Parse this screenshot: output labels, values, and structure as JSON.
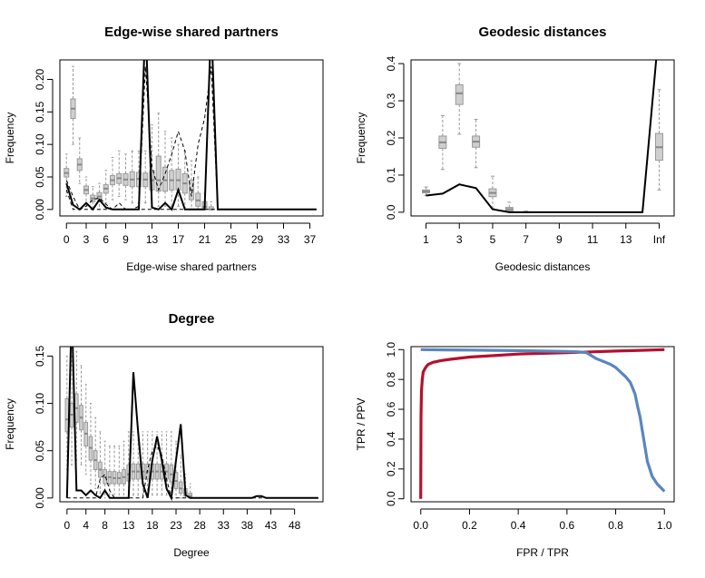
{
  "chart_data": [
    {
      "type": "boxplot-line",
      "title": "Edge-wise shared partners",
      "xlabel": "Edge-wise shared partners",
      "ylabel": "Frequency",
      "xlim": [
        -1,
        39
      ],
      "ylim": [
        -0.01,
        0.23
      ],
      "xticks": [
        0,
        3,
        6,
        9,
        13,
        17,
        21,
        25,
        29,
        33,
        37
      ],
      "yticks": [
        0.0,
        0.05,
        0.1,
        0.15,
        0.2
      ],
      "ytick_labels": [
        "0.00",
        "0.05",
        "0.10",
        "0.15",
        "0.20"
      ],
      "boxes": [
        {
          "x": 0,
          "wl": 0.02,
          "q1": 0.05,
          "med": 0.056,
          "q3": 0.063,
          "wh": 0.085
        },
        {
          "x": 1,
          "wl": 0.1,
          "q1": 0.14,
          "med": 0.155,
          "q3": 0.17,
          "wh": 0.22
        },
        {
          "x": 2,
          "wl": 0.04,
          "q1": 0.06,
          "med": 0.069,
          "q3": 0.078,
          "wh": 0.11
        },
        {
          "x": 3,
          "wl": 0.005,
          "q1": 0.024,
          "med": 0.03,
          "q3": 0.036,
          "wh": 0.05
        },
        {
          "x": 4,
          "wl": 0.0,
          "q1": 0.012,
          "med": 0.017,
          "q3": 0.022,
          "wh": 0.035
        },
        {
          "x": 5,
          "wl": 0.0,
          "q1": 0.015,
          "med": 0.02,
          "q3": 0.026,
          "wh": 0.04
        },
        {
          "x": 6,
          "wl": 0.01,
          "q1": 0.025,
          "med": 0.032,
          "q3": 0.038,
          "wh": 0.06
        },
        {
          "x": 7,
          "wl": 0.015,
          "q1": 0.038,
          "med": 0.045,
          "q3": 0.052,
          "wh": 0.08
        },
        {
          "x": 8,
          "wl": 0.02,
          "q1": 0.04,
          "med": 0.048,
          "q3": 0.055,
          "wh": 0.09
        },
        {
          "x": 9,
          "wl": 0.015,
          "q1": 0.037,
          "med": 0.046,
          "q3": 0.055,
          "wh": 0.085
        },
        {
          "x": 10,
          "wl": 0.01,
          "q1": 0.035,
          "med": 0.046,
          "q3": 0.058,
          "wh": 0.09
        },
        {
          "x": 11,
          "wl": 0.01,
          "q1": 0.035,
          "med": 0.047,
          "q3": 0.057,
          "wh": 0.09
        },
        {
          "x": 12,
          "wl": 0.01,
          "q1": 0.035,
          "med": 0.046,
          "q3": 0.056,
          "wh": 0.09
        },
        {
          "x": 13,
          "wl": 0.005,
          "q1": 0.03,
          "med": 0.045,
          "q3": 0.06,
          "wh": 0.13
        },
        {
          "x": 14,
          "wl": 0.005,
          "q1": 0.028,
          "med": 0.045,
          "q3": 0.082,
          "wh": 0.148
        },
        {
          "x": 15,
          "wl": 0.005,
          "q1": 0.028,
          "med": 0.045,
          "q3": 0.065,
          "wh": 0.12
        },
        {
          "x": 16,
          "wl": 0.005,
          "q1": 0.03,
          "med": 0.045,
          "q3": 0.06,
          "wh": 0.11
        },
        {
          "x": 17,
          "wl": 0.005,
          "q1": 0.03,
          "med": 0.045,
          "q3": 0.062,
          "wh": 0.1
        },
        {
          "x": 18,
          "wl": 0.003,
          "q1": 0.025,
          "med": 0.04,
          "q3": 0.055,
          "wh": 0.09
        },
        {
          "x": 19,
          "wl": 0.0,
          "q1": 0.015,
          "med": 0.03,
          "q3": 0.045,
          "wh": 0.075
        },
        {
          "x": 20,
          "wl": 0.0,
          "q1": 0.005,
          "med": 0.014,
          "q3": 0.025,
          "wh": 0.05
        },
        {
          "x": 21,
          "wl": 0.0,
          "q1": 0.0,
          "med": 0.004,
          "q3": 0.012,
          "wh": 0.025
        },
        {
          "x": 22,
          "wl": 0.0,
          "q1": 0.0,
          "med": 0.0,
          "q3": 0.004,
          "wh": 0.012
        }
      ],
      "obs_x": [
        0,
        1,
        2,
        3,
        4,
        5,
        6,
        7,
        8,
        9,
        10,
        11,
        12,
        13,
        14,
        15,
        16,
        17,
        18,
        19,
        20,
        21,
        22,
        23,
        24,
        25,
        26,
        27,
        28,
        29,
        30,
        31,
        32,
        33,
        34,
        35,
        36,
        37,
        38
      ],
      "obs_y": [
        0.04,
        0.007,
        0.0,
        0.01,
        0.0,
        0.015,
        0.003,
        0.0,
        0.0,
        0.0,
        0.0,
        0.0,
        0.29,
        0.003,
        0.0,
        0.01,
        0.0,
        0.03,
        0.0,
        0.0,
        0.0,
        0.0,
        0.29,
        0.0,
        0.0,
        0.0,
        0.0,
        0.0,
        0.0,
        0.0,
        0.0,
        0.0,
        0.0,
        0.0,
        0.0,
        0.0,
        0.0,
        0.0,
        0.0
      ],
      "ci_lo": [
        0.03,
        0.0,
        0.0,
        0.0,
        0.0,
        0.0,
        0.0,
        0.0,
        0.0,
        0.0,
        0.0,
        0.0,
        0.0,
        0.0,
        0.0,
        0.0,
        0.0,
        0.0,
        0.0,
        0.0,
        0.0,
        0.0,
        0.0,
        0.0,
        0.0,
        0.0,
        0.0,
        0.0,
        0.0,
        0.0,
        0.0,
        0.0,
        0.0,
        0.0,
        0.0,
        0.0,
        0.0,
        0.0,
        0.0
      ],
      "ci_hi": [
        0.045,
        0.02,
        0.0,
        0.005,
        0.015,
        0.018,
        0.008,
        0.0,
        0.01,
        0.0,
        0.0,
        0.005,
        0.22,
        0.065,
        0.03,
        0.055,
        0.085,
        0.12,
        0.09,
        0.02,
        0.1,
        0.14,
        0.22,
        0.0,
        0.0,
        0.0,
        0.0,
        0.0,
        0.0,
        0.0,
        0.0,
        0.0,
        0.0,
        0.0,
        0.0,
        0.0,
        0.0,
        0.0,
        0.0
      ]
    },
    {
      "type": "boxplot-line",
      "title": "Geodesic distances",
      "xlabel": "Geodesic distances",
      "ylabel": "Frequency",
      "xlim": [
        0.1,
        15.9
      ],
      "ylim": [
        -0.01,
        0.41
      ],
      "xticks": [
        1,
        3,
        5,
        7,
        9,
        11,
        13,
        15
      ],
      "xtick_labels": [
        "1",
        "3",
        "5",
        "7",
        "9",
        "11",
        "13",
        "Inf"
      ],
      "yticks": [
        0.0,
        0.1,
        0.2,
        0.3,
        0.4
      ],
      "ytick_labels": [
        "0.0",
        "0.1",
        "0.2",
        "0.3",
        "0.4"
      ],
      "boxes": [
        {
          "x": 1,
          "wl": 0.045,
          "q1": 0.052,
          "med": 0.056,
          "q3": 0.06,
          "wh": 0.068
        },
        {
          "x": 2,
          "wl": 0.115,
          "q1": 0.172,
          "med": 0.188,
          "q3": 0.205,
          "wh": 0.26
        },
        {
          "x": 3,
          "wl": 0.21,
          "q1": 0.29,
          "med": 0.32,
          "q3": 0.343,
          "wh": 0.4
        },
        {
          "x": 4,
          "wl": 0.12,
          "q1": 0.175,
          "med": 0.19,
          "q3": 0.205,
          "wh": 0.25
        },
        {
          "x": 5,
          "wl": 0.01,
          "q1": 0.042,
          "med": 0.052,
          "q3": 0.063,
          "wh": 0.097
        },
        {
          "x": 6,
          "wl": 0.0,
          "q1": 0.003,
          "med": 0.008,
          "q3": 0.013,
          "wh": 0.027
        },
        {
          "x": 7,
          "wl": 0.0,
          "q1": 0.0,
          "med": 0.0,
          "q3": 0.001,
          "wh": 0.003
        },
        {
          "x": 15,
          "wl": 0.06,
          "q1": 0.14,
          "med": 0.175,
          "q3": 0.212,
          "wh": 0.33
        }
      ],
      "obs_x": [
        1,
        2,
        3,
        4,
        5,
        6,
        7,
        8,
        9,
        10,
        11,
        12,
        13,
        14,
        15
      ],
      "obs_y": [
        0.045,
        0.05,
        0.075,
        0.065,
        0.008,
        0.0,
        0.0,
        0.0,
        0.0,
        0.0,
        0.0,
        0.0,
        0.0,
        0.0,
        0.5
      ],
      "ci_lo": [],
      "ci_hi": []
    },
    {
      "type": "boxplot-line",
      "title": "Degree",
      "xlabel": "Degree",
      "ylabel": "Frequency",
      "xlim": [
        -1.5,
        54
      ],
      "ylim": [
        -0.004,
        0.16
      ],
      "xticks": [
        0,
        4,
        8,
        13,
        18,
        23,
        28,
        33,
        38,
        43,
        48
      ],
      "yticks": [
        0.0,
        0.05,
        0.1,
        0.15
      ],
      "ytick_labels": [
        "0.00",
        "0.05",
        "0.10",
        "0.15"
      ],
      "boxes": [
        {
          "x": 0,
          "wl": 0.03,
          "q1": 0.07,
          "med": 0.083,
          "q3": 0.105,
          "wh": 0.15
        },
        {
          "x": 1,
          "wl": 0.035,
          "q1": 0.075,
          "med": 0.088,
          "q3": 0.1,
          "wh": 0.15
        },
        {
          "x": 2,
          "wl": 0.04,
          "q1": 0.08,
          "med": 0.095,
          "q3": 0.11,
          "wh": 0.155
        },
        {
          "x": 3,
          "wl": 0.035,
          "q1": 0.072,
          "med": 0.085,
          "q3": 0.098,
          "wh": 0.14
        },
        {
          "x": 4,
          "wl": 0.025,
          "q1": 0.055,
          "med": 0.068,
          "q3": 0.08,
          "wh": 0.12
        },
        {
          "x": 5,
          "wl": 0.015,
          "q1": 0.04,
          "med": 0.053,
          "q3": 0.065,
          "wh": 0.1
        },
        {
          "x": 6,
          "wl": 0.01,
          "q1": 0.03,
          "med": 0.04,
          "q3": 0.05,
          "wh": 0.085
        },
        {
          "x": 7,
          "wl": 0.005,
          "q1": 0.022,
          "med": 0.03,
          "q3": 0.038,
          "wh": 0.07
        },
        {
          "x": 8,
          "wl": 0.0,
          "q1": 0.015,
          "med": 0.022,
          "q3": 0.03,
          "wh": 0.06
        },
        {
          "x": 9,
          "wl": 0.0,
          "q1": 0.015,
          "med": 0.022,
          "q3": 0.028,
          "wh": 0.055
        },
        {
          "x": 10,
          "wl": 0.0,
          "q1": 0.015,
          "med": 0.021,
          "q3": 0.028,
          "wh": 0.055
        },
        {
          "x": 11,
          "wl": 0.0,
          "q1": 0.015,
          "med": 0.021,
          "q3": 0.027,
          "wh": 0.055
        },
        {
          "x": 12,
          "wl": 0.0,
          "q1": 0.015,
          "med": 0.022,
          "q3": 0.03,
          "wh": 0.06
        },
        {
          "x": 13,
          "wl": 0.0,
          "q1": 0.018,
          "med": 0.025,
          "q3": 0.035,
          "wh": 0.07
        },
        {
          "x": 14,
          "wl": 0.003,
          "q1": 0.02,
          "med": 0.028,
          "q3": 0.036,
          "wh": 0.07
        },
        {
          "x": 15,
          "wl": 0.003,
          "q1": 0.02,
          "med": 0.028,
          "q3": 0.036,
          "wh": 0.07
        },
        {
          "x": 16,
          "wl": 0.003,
          "q1": 0.02,
          "med": 0.028,
          "q3": 0.036,
          "wh": 0.07
        },
        {
          "x": 17,
          "wl": 0.003,
          "q1": 0.02,
          "med": 0.028,
          "q3": 0.036,
          "wh": 0.07
        },
        {
          "x": 18,
          "wl": 0.003,
          "q1": 0.02,
          "med": 0.028,
          "q3": 0.036,
          "wh": 0.07
        },
        {
          "x": 19,
          "wl": 0.003,
          "q1": 0.02,
          "med": 0.028,
          "q3": 0.036,
          "wh": 0.07
        },
        {
          "x": 20,
          "wl": 0.003,
          "q1": 0.02,
          "med": 0.028,
          "q3": 0.036,
          "wh": 0.07
        },
        {
          "x": 21,
          "wl": 0.003,
          "q1": 0.02,
          "med": 0.028,
          "q3": 0.036,
          "wh": 0.07
        },
        {
          "x": 22,
          "wl": 0.002,
          "q1": 0.017,
          "med": 0.025,
          "q3": 0.035,
          "wh": 0.07
        },
        {
          "x": 23,
          "wl": 0.0,
          "q1": 0.01,
          "med": 0.018,
          "q3": 0.027,
          "wh": 0.06
        },
        {
          "x": 24,
          "wl": 0.0,
          "q1": 0.005,
          "med": 0.01,
          "q3": 0.017,
          "wh": 0.045
        },
        {
          "x": 25,
          "wl": 0.0,
          "q1": 0.002,
          "med": 0.005,
          "q3": 0.01,
          "wh": 0.025
        },
        {
          "x": 26,
          "wl": 0.0,
          "q1": 0.0,
          "med": 0.002,
          "q3": 0.005,
          "wh": 0.015
        }
      ],
      "obs_x": [
        0,
        1,
        2,
        3,
        4,
        5,
        6,
        7,
        8,
        9,
        10,
        11,
        12,
        13,
        14,
        15,
        16,
        17,
        18,
        19,
        20,
        21,
        22,
        23,
        24,
        25,
        26,
        27,
        28,
        29,
        30,
        31,
        32,
        33,
        34,
        35,
        36,
        37,
        38,
        39,
        40,
        41,
        42,
        43,
        44,
        45,
        46,
        47,
        48,
        49,
        50,
        51,
        52,
        53
      ],
      "obs_y": [
        0.0,
        0.2,
        0.008,
        0.008,
        0.003,
        0.008,
        0.003,
        0.0,
        0.008,
        0.0,
        0.0,
        0.0,
        0.0,
        0.0,
        0.133,
        0.07,
        0.015,
        0.0,
        0.04,
        0.065,
        0.04,
        0.01,
        0.0,
        0.04,
        0.078,
        0.003,
        0.0,
        0.0,
        0.0,
        0.0,
        0.0,
        0.0,
        0.0,
        0.0,
        0.0,
        0.0,
        0.0,
        0.0,
        0.0,
        0.0,
        0.002,
        0.002,
        0.0,
        0.0,
        0.0,
        0.0,
        0.0,
        0.0,
        0.0,
        0.0,
        0.0,
        0.0,
        0.0,
        0.0
      ],
      "ci_lo": [],
      "ci_hi": [
        0.0,
        0.0,
        0.0,
        0.0,
        0.0,
        0.0,
        0.0,
        0.02,
        0.025,
        0.008,
        0.0,
        0.0,
        0.0,
        0.0,
        0.0,
        0.0,
        0.0,
        0.03,
        0.05,
        0.055,
        0.045,
        0.02,
        0.0,
        0.0,
        0.0,
        0.0,
        0.0,
        0.0,
        0.0,
        0.0,
        0.0,
        0.0,
        0.0,
        0.0,
        0.0,
        0.0,
        0.0,
        0.0,
        0.0,
        0.0,
        0.0,
        0.0,
        0.0,
        0.0,
        0.0,
        0.0,
        0.0,
        0.0,
        0.0,
        0.0,
        0.0,
        0.0,
        0.0,
        0.0
      ]
    },
    {
      "type": "line",
      "title": "",
      "xlabel": "FPR / TPR",
      "ylabel": "TPR / PPV",
      "xlim": [
        -0.04,
        1.04
      ],
      "ylim": [
        -0.02,
        1.02
      ],
      "xticks": [
        0.0,
        0.2,
        0.4,
        0.6,
        0.8,
        1.0
      ],
      "xtick_labels": [
        "0.0",
        "0.2",
        "0.4",
        "0.6",
        "0.8",
        "1.0"
      ],
      "yticks": [
        0.0,
        0.2,
        0.4,
        0.6,
        0.8,
        1.0
      ],
      "ytick_labels": [
        "0.0",
        "0.2",
        "0.4",
        "0.6",
        "0.8",
        "1.0"
      ],
      "series": [
        {
          "color": "#b3112e",
          "x": [
            0.0,
            0.001,
            0.003,
            0.006,
            0.01,
            0.02,
            0.03,
            0.05,
            0.08,
            0.12,
            0.2,
            0.3,
            0.4,
            0.5,
            0.6,
            0.7,
            0.8,
            0.9,
            1.0
          ],
          "y": [
            0.0,
            0.55,
            0.72,
            0.8,
            0.85,
            0.88,
            0.9,
            0.915,
            0.925,
            0.935,
            0.95,
            0.96,
            0.97,
            0.975,
            0.98,
            0.985,
            0.99,
            0.995,
            1.0
          ]
        },
        {
          "color": "#5a86be",
          "x": [
            0.0,
            0.1,
            0.2,
            0.3,
            0.4,
            0.5,
            0.6,
            0.65,
            0.68,
            0.7,
            0.72,
            0.75,
            0.78,
            0.8,
            0.82,
            0.84,
            0.86,
            0.87,
            0.88,
            0.89,
            0.9,
            0.91,
            0.92,
            0.93,
            0.95,
            0.97,
            1.0
          ],
          "y": [
            1.0,
            0.998,
            0.997,
            0.995,
            0.993,
            0.99,
            0.987,
            0.985,
            0.98,
            0.96,
            0.94,
            0.92,
            0.9,
            0.88,
            0.85,
            0.82,
            0.78,
            0.74,
            0.7,
            0.62,
            0.55,
            0.45,
            0.35,
            0.25,
            0.15,
            0.1,
            0.05
          ]
        }
      ]
    }
  ]
}
